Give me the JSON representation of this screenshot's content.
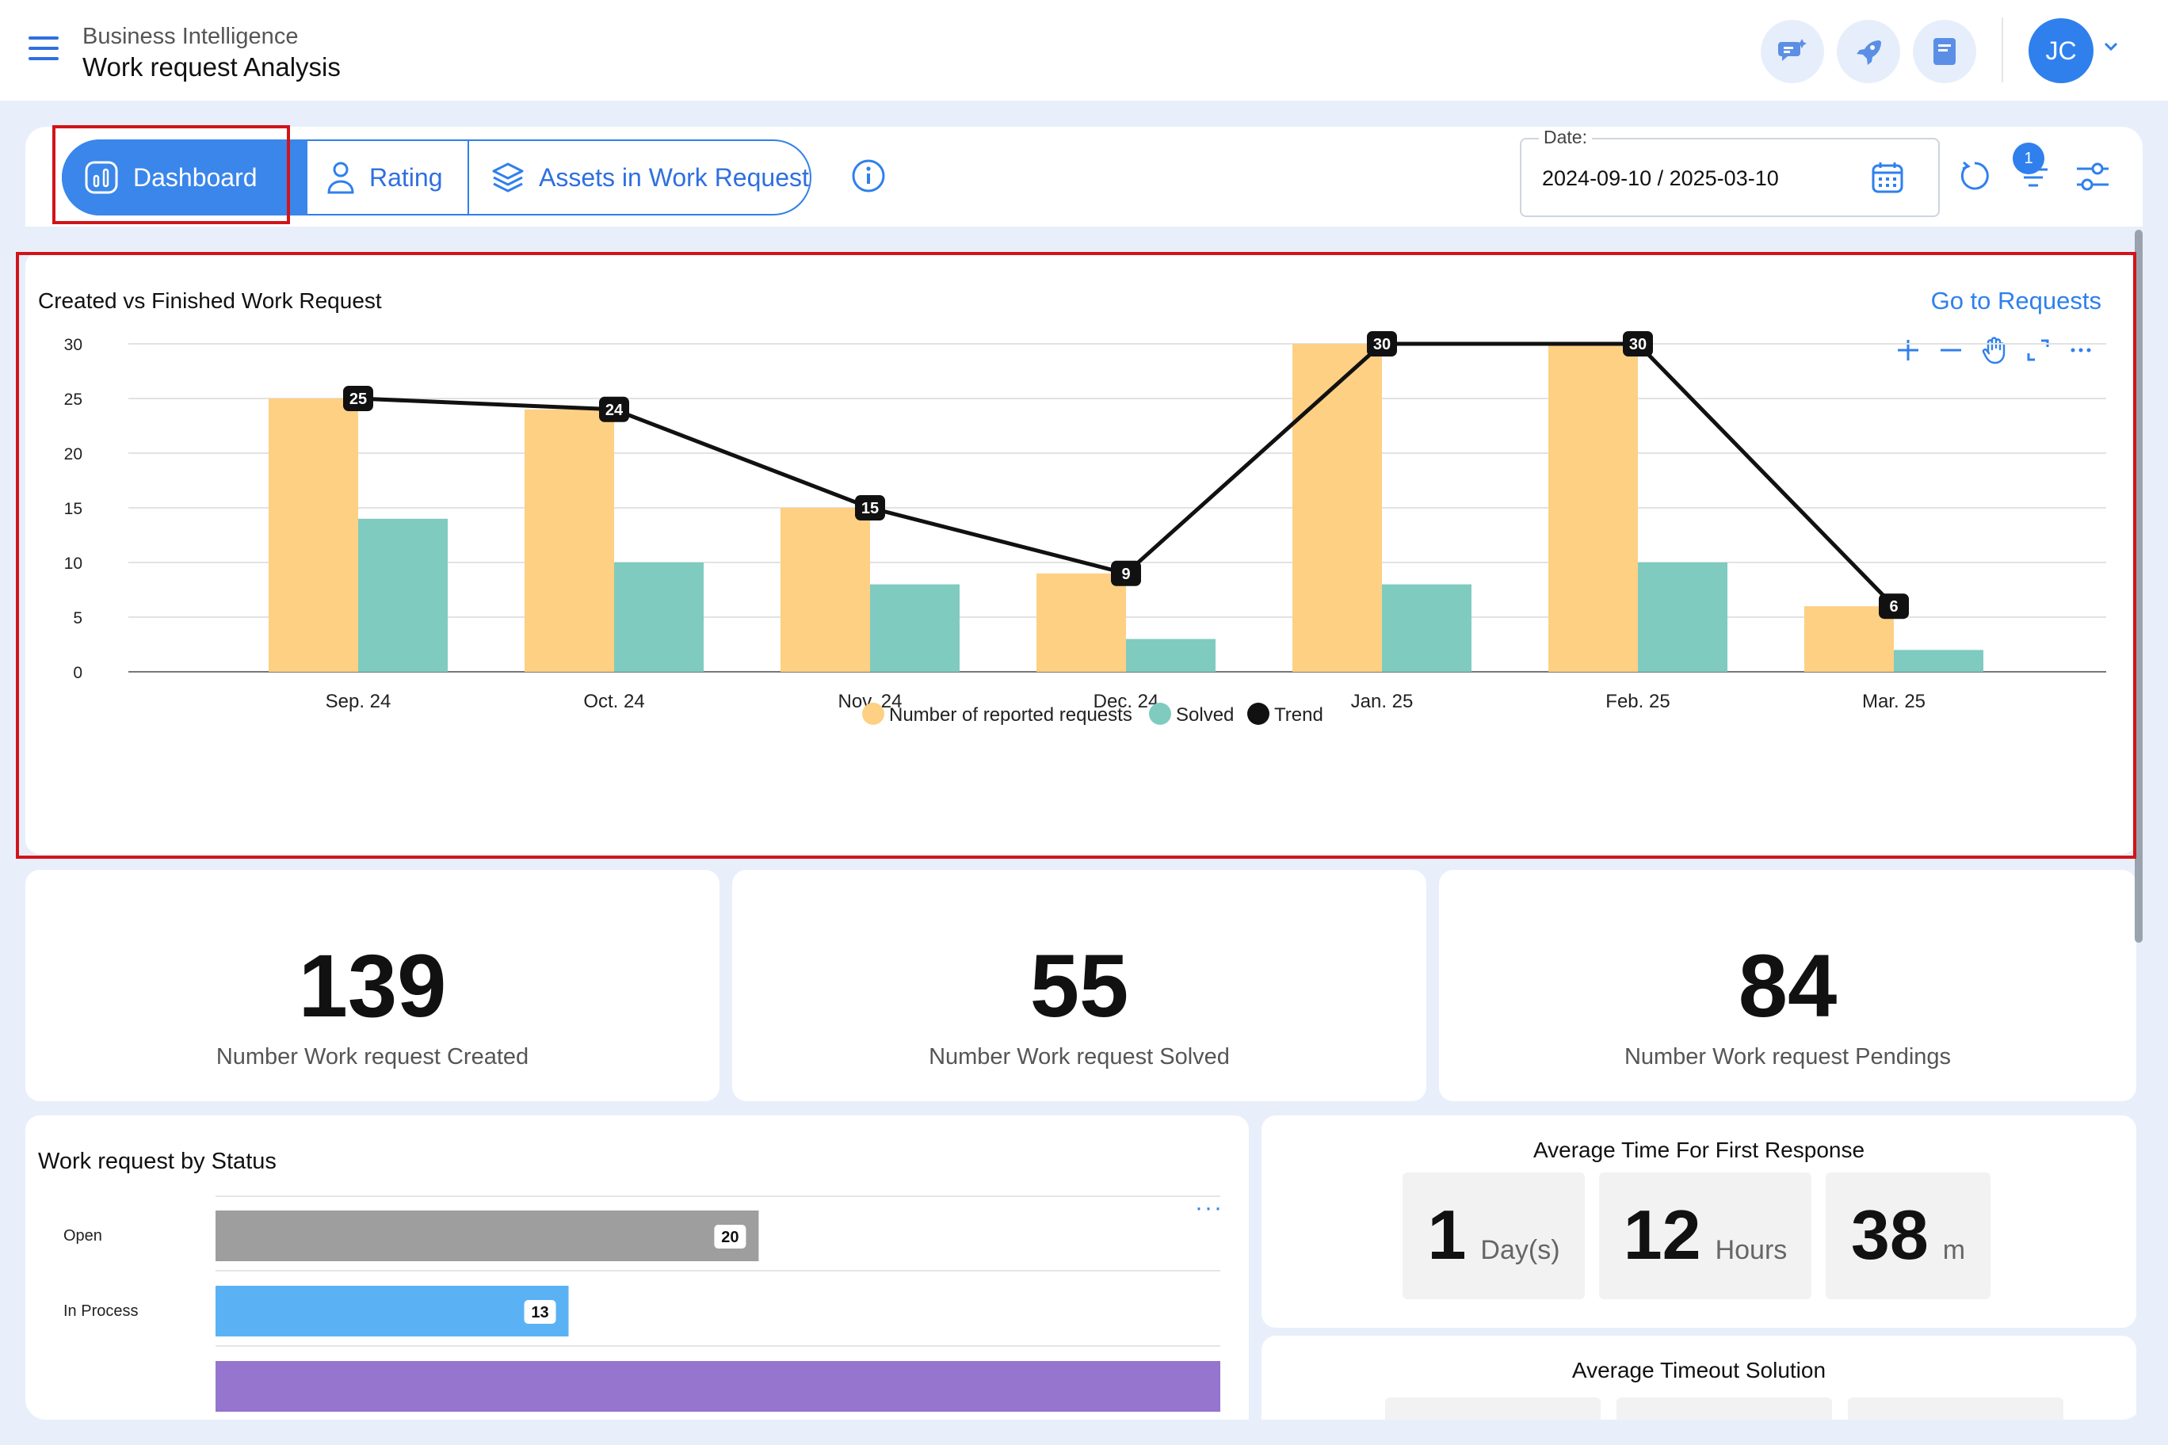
{
  "header": {
    "section": "Business Intelligence",
    "title": "Work request Analysis",
    "avatar_initials": "JC"
  },
  "tabs": [
    {
      "label": "Dashboard",
      "icon": "chart-bars-icon",
      "active": true
    },
    {
      "label": "Rating",
      "icon": "person-icon",
      "active": false
    },
    {
      "label": "Assets in Work Request",
      "icon": "layers-icon",
      "active": false
    }
  ],
  "filters": {
    "date_label": "Date:",
    "date_value": "2024-09-10 / 2025-03-10",
    "filter_badge": "1"
  },
  "chart_card": {
    "title": "Created vs Finished Work Request",
    "link": "Go to Requests"
  },
  "chart_data": {
    "type": "bar",
    "categories": [
      "Sep. 24",
      "Oct. 24",
      "Nov. 24",
      "Dec. 24",
      "Jan. 25",
      "Feb. 25",
      "Mar. 25"
    ],
    "series": [
      {
        "name": "Number of reported requests",
        "type": "bar",
        "color": "#fdd083",
        "values": [
          25,
          24,
          15,
          9,
          30,
          30,
          6
        ]
      },
      {
        "name": "Solved",
        "type": "bar",
        "color": "#7fcbc0",
        "values": [
          14,
          10,
          8,
          3,
          8,
          10,
          2
        ]
      },
      {
        "name": "Trend",
        "type": "line",
        "color": "#111111",
        "values": [
          25,
          24,
          15,
          9,
          30,
          30,
          6
        ]
      }
    ],
    "ylim": [
      0,
      30
    ],
    "yticks": [
      0,
      5,
      10,
      15,
      20,
      25,
      30
    ],
    "grid": true,
    "legend_position": "bottom-center"
  },
  "kpis": [
    {
      "value": "139",
      "label": "Number Work request Created"
    },
    {
      "value": "55",
      "label": "Number Work request Solved"
    },
    {
      "value": "84",
      "label": "Number Work request Pendings"
    }
  ],
  "status_card": {
    "title": "Work request by Status",
    "more": "···",
    "rows": [
      {
        "label": "Open",
        "value": 20,
        "color": "#9e9e9e"
      },
      {
        "label": "In Process",
        "value": 13,
        "color": "#5ab2f5"
      },
      {
        "label": "",
        "value": 37,
        "color": "#9575cd"
      }
    ],
    "max": 37
  },
  "first_response": {
    "title": "Average Time For First Response",
    "days": "1",
    "days_unit": "Day(s)",
    "hours": "12",
    "hours_unit": "Hours",
    "minutes": "38",
    "minutes_unit": "m"
  },
  "timeout_solution": {
    "title": "Average Timeout Solution"
  }
}
